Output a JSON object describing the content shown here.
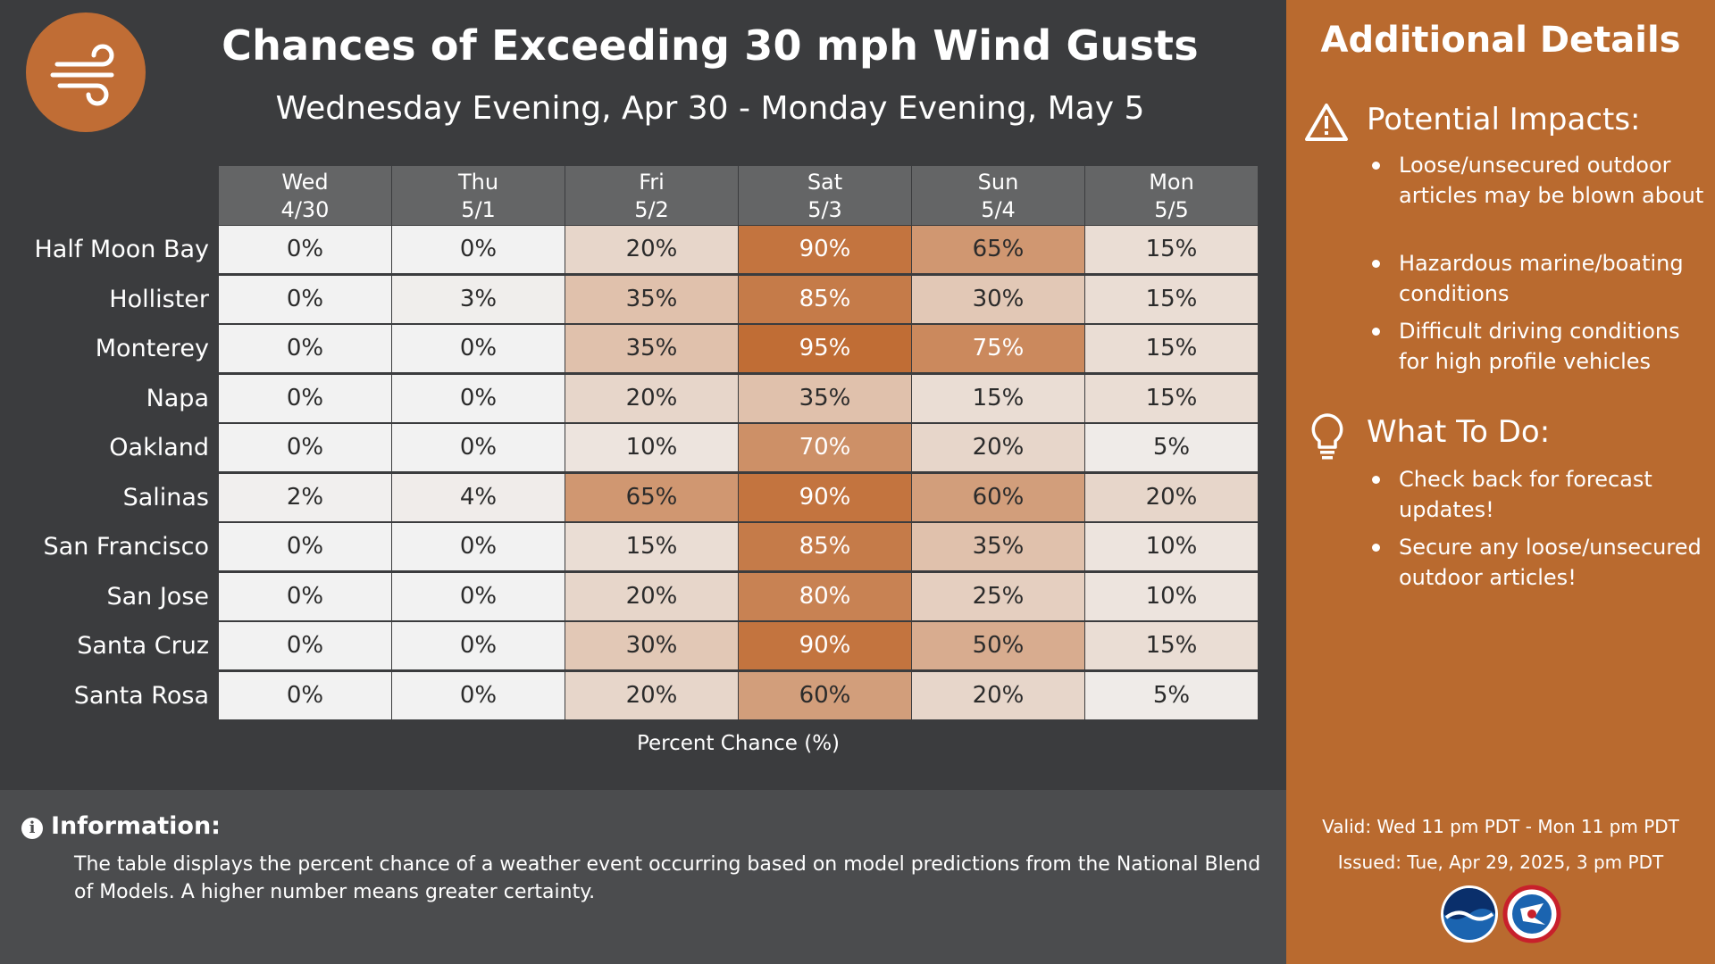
{
  "header": {
    "title": "Chances of Exceeding 30 mph Wind Gusts",
    "subtitle": "Wednesday Evening, Apr 30 - Monday Evening, May 5",
    "icon": "wind-icon"
  },
  "table": {
    "columns": [
      {
        "day": "Wed",
        "date": "4/30"
      },
      {
        "day": "Thu",
        "date": "5/1"
      },
      {
        "day": "Fri",
        "date": "5/2"
      },
      {
        "day": "Sat",
        "date": "5/3"
      },
      {
        "day": "Sun",
        "date": "5/4"
      },
      {
        "day": "Mon",
        "date": "5/5"
      }
    ],
    "rows": [
      {
        "location": "Half Moon Bay",
        "values": [
          0,
          0,
          20,
          90,
          65,
          15
        ],
        "labels": [
          "0%",
          "0%",
          "20%",
          "90%",
          "65%",
          "15%"
        ]
      },
      {
        "location": "Hollister",
        "values": [
          0,
          3,
          35,
          85,
          30,
          15
        ],
        "labels": [
          "0%",
          "3%",
          "35%",
          "85%",
          "30%",
          "15%"
        ]
      },
      {
        "location": "Monterey",
        "values": [
          0,
          0,
          35,
          95,
          75,
          15
        ],
        "labels": [
          "0%",
          "0%",
          "35%",
          "95%",
          "75%",
          "15%"
        ]
      },
      {
        "location": "Napa",
        "values": [
          0,
          0,
          20,
          35,
          15,
          15
        ],
        "labels": [
          "0%",
          "0%",
          "20%",
          "35%",
          "15%",
          "15%"
        ]
      },
      {
        "location": "Oakland",
        "values": [
          0,
          0,
          10,
          70,
          20,
          5
        ],
        "labels": [
          "0%",
          "0%",
          "10%",
          "70%",
          "20%",
          "5%"
        ]
      },
      {
        "location": "Salinas",
        "values": [
          2,
          4,
          65,
          90,
          60,
          20
        ],
        "labels": [
          "2%",
          "4%",
          "65%",
          "90%",
          "60%",
          "20%"
        ]
      },
      {
        "location": "San Francisco",
        "values": [
          0,
          0,
          15,
          85,
          35,
          10
        ],
        "labels": [
          "0%",
          "0%",
          "15%",
          "85%",
          "35%",
          "10%"
        ]
      },
      {
        "location": "San Jose",
        "values": [
          0,
          0,
          20,
          80,
          25,
          10
        ],
        "labels": [
          "0%",
          "0%",
          "20%",
          "80%",
          "25%",
          "10%"
        ]
      },
      {
        "location": "Santa Cruz",
        "values": [
          0,
          0,
          30,
          90,
          50,
          15
        ],
        "labels": [
          "0%",
          "0%",
          "30%",
          "90%",
          "50%",
          "15%"
        ]
      },
      {
        "location": "Santa Rosa",
        "values": [
          0,
          0,
          20,
          60,
          20,
          5
        ],
        "labels": [
          "0%",
          "0%",
          "20%",
          "60%",
          "20%",
          "5%"
        ]
      }
    ],
    "caption": "Percent Chance (%)",
    "colors": {
      "low": "#f2f2f2",
      "high": "#c06d35",
      "header_bg": "#646566"
    }
  },
  "information": {
    "title": "Information:",
    "text": "The table displays the percent chance of a weather event occurring based on model predictions from the National Blend of Models. A higher number means greater certainty."
  },
  "sidebar": {
    "title": "Additional Details",
    "impacts": {
      "title": "Potential Impacts:",
      "icon": "warning-icon",
      "items": [
        "Loose/unsecured outdoor articles may be blown about",
        "Hazardous marine/boating conditions",
        "Difficult driving conditions for high profile vehicles"
      ]
    },
    "todo": {
      "title": "What To Do:",
      "icon": "lightbulb-icon",
      "items": [
        "Check back for forecast updates!",
        "Secure any loose/unsecured outdoor articles!"
      ]
    },
    "valid": "Valid: Wed 11 pm PDT - Mon 11 pm PDT",
    "issued": "Issued: Tue, Apr 29, 2025, 3 pm PDT",
    "logos": [
      "noaa-logo",
      "nws-logo"
    ],
    "accent": "#b96a2f"
  }
}
